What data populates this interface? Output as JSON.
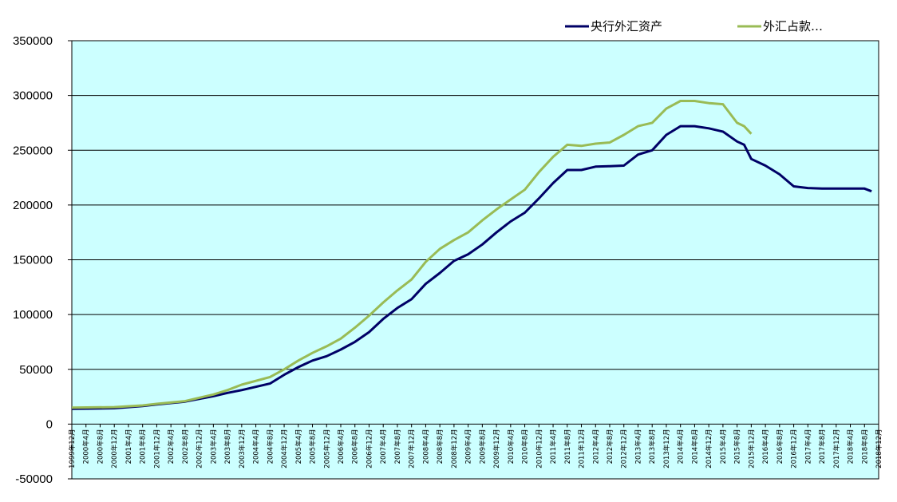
{
  "chart_data": {
    "type": "line",
    "ylim": [
      -50000,
      350000
    ],
    "y_ticks": [
      -50000,
      0,
      50000,
      100000,
      150000,
      200000,
      250000,
      300000,
      350000
    ],
    "y_tick_labels": [
      "-50000",
      "0",
      "50000",
      "100000",
      "150000",
      "200000",
      "250000",
      "300000",
      "350000"
    ],
    "x_start": "1999-12",
    "x_end": "2018-12",
    "x_tick_labels": [
      "1999年12月",
      "2000年4月",
      "2000年8月",
      "2000年12月",
      "2001年4月",
      "2001年8月",
      "2001年12月",
      "2002年4月",
      "2002年8月",
      "2002年12月",
      "2003年4月",
      "2003年8月",
      "2003年12月",
      "2004年4月",
      "2004年8月",
      "2004年12月",
      "2005年4月",
      "2005年8月",
      "2005年12月",
      "2006年4月",
      "2006年8月",
      "2006年12月",
      "2007年4月",
      "2007年8月",
      "2007年12月",
      "2008年4月",
      "2008年8月",
      "2008年12月",
      "2009年4月",
      "2009年8月",
      "2009年12月",
      "2010年4月",
      "2010年8月",
      "2010年12月",
      "2011年4月",
      "2011年8月",
      "2011年12月",
      "2012年4月",
      "2012年8月",
      "2012年12月",
      "2013年4月",
      "2013年8月",
      "2013年12月",
      "2014年4月",
      "2014年8月",
      "2014年12月",
      "2015年4月",
      "2015年8月",
      "2015年12月",
      "2016年4月",
      "2016年8月",
      "2016年12月",
      "2017年4月",
      "2017年8月",
      "2017年12月",
      "2018年4月",
      "2018年8月",
      "2018年12月"
    ],
    "grid": "horizontal",
    "legend_position": "top-right",
    "background_color": "#ccffff",
    "series": [
      {
        "name": "央行外汇资产",
        "color": "#000066",
        "points": [
          [
            "1999-12",
            14000
          ],
          [
            "2000-12",
            14500
          ],
          [
            "2001-08",
            16500
          ],
          [
            "2001-12",
            18000
          ],
          [
            "2002-08",
            20500
          ],
          [
            "2002-12",
            23000
          ],
          [
            "2003-04",
            25500
          ],
          [
            "2003-08",
            28500
          ],
          [
            "2003-12",
            31000
          ],
          [
            "2004-08",
            37000
          ],
          [
            "2004-12",
            45000
          ],
          [
            "2005-04",
            52000
          ],
          [
            "2005-08",
            58000
          ],
          [
            "2005-12",
            62000
          ],
          [
            "2006-04",
            68000
          ],
          [
            "2006-08",
            75000
          ],
          [
            "2006-12",
            84000
          ],
          [
            "2007-04",
            96000
          ],
          [
            "2007-08",
            106000
          ],
          [
            "2007-12",
            114000
          ],
          [
            "2008-04",
            128000
          ],
          [
            "2008-08",
            138000
          ],
          [
            "2008-12",
            149000
          ],
          [
            "2009-04",
            155000
          ],
          [
            "2009-08",
            164000
          ],
          [
            "2009-12",
            175000
          ],
          [
            "2010-04",
            185000
          ],
          [
            "2010-08",
            193000
          ],
          [
            "2010-12",
            206000
          ],
          [
            "2011-04",
            220000
          ],
          [
            "2011-08",
            232000
          ],
          [
            "2011-12",
            232000
          ],
          [
            "2012-04",
            235000
          ],
          [
            "2012-08",
            235500
          ],
          [
            "2012-12",
            236000
          ],
          [
            "2013-04",
            246000
          ],
          [
            "2013-08",
            250000
          ],
          [
            "2013-12",
            264000
          ],
          [
            "2014-04",
            272000
          ],
          [
            "2014-08",
            272000
          ],
          [
            "2014-12",
            270000
          ],
          [
            "2015-04",
            267000
          ],
          [
            "2015-08",
            258000
          ],
          [
            "2015-10",
            255000
          ],
          [
            "2015-12",
            242000
          ],
          [
            "2016-04",
            236000
          ],
          [
            "2016-08",
            228000
          ],
          [
            "2016-12",
            217000
          ],
          [
            "2017-04",
            215500
          ],
          [
            "2017-08",
            215000
          ],
          [
            "2017-12",
            215000
          ],
          [
            "2018-04",
            215000
          ],
          [
            "2018-08",
            215000
          ],
          [
            "2018-10",
            212500
          ]
        ]
      },
      {
        "name": "外汇占款…",
        "color": "#99bb55",
        "points": [
          [
            "1999-12",
            15000
          ],
          [
            "2000-12",
            15500
          ],
          [
            "2001-08",
            17000
          ],
          [
            "2001-12",
            18500
          ],
          [
            "2002-08",
            21000
          ],
          [
            "2002-12",
            24000
          ],
          [
            "2003-04",
            27000
          ],
          [
            "2003-08",
            31000
          ],
          [
            "2003-12",
            36000
          ],
          [
            "2004-08",
            43000
          ],
          [
            "2004-12",
            50000
          ],
          [
            "2005-04",
            58000
          ],
          [
            "2005-08",
            65000
          ],
          [
            "2005-12",
            71000
          ],
          [
            "2006-04",
            78000
          ],
          [
            "2006-08",
            88000
          ],
          [
            "2006-12",
            99000
          ],
          [
            "2007-04",
            111000
          ],
          [
            "2007-08",
            122000
          ],
          [
            "2007-12",
            132000
          ],
          [
            "2008-04",
            148000
          ],
          [
            "2008-08",
            160000
          ],
          [
            "2008-12",
            168000
          ],
          [
            "2009-04",
            175000
          ],
          [
            "2009-08",
            186000
          ],
          [
            "2009-12",
            196000
          ],
          [
            "2010-04",
            205000
          ],
          [
            "2010-08",
            214000
          ],
          [
            "2010-12",
            230000
          ],
          [
            "2011-04",
            244000
          ],
          [
            "2011-08",
            255000
          ],
          [
            "2011-12",
            254000
          ],
          [
            "2012-04",
            256000
          ],
          [
            "2012-08",
            257000
          ],
          [
            "2012-12",
            264000
          ],
          [
            "2013-04",
            272000
          ],
          [
            "2013-08",
            275000
          ],
          [
            "2013-12",
            288000
          ],
          [
            "2014-04",
            295000
          ],
          [
            "2014-08",
            295000
          ],
          [
            "2014-12",
            293000
          ],
          [
            "2015-04",
            292000
          ],
          [
            "2015-08",
            275000
          ],
          [
            "2015-10",
            272000
          ],
          [
            "2015-12",
            265000
          ]
        ]
      }
    ]
  }
}
